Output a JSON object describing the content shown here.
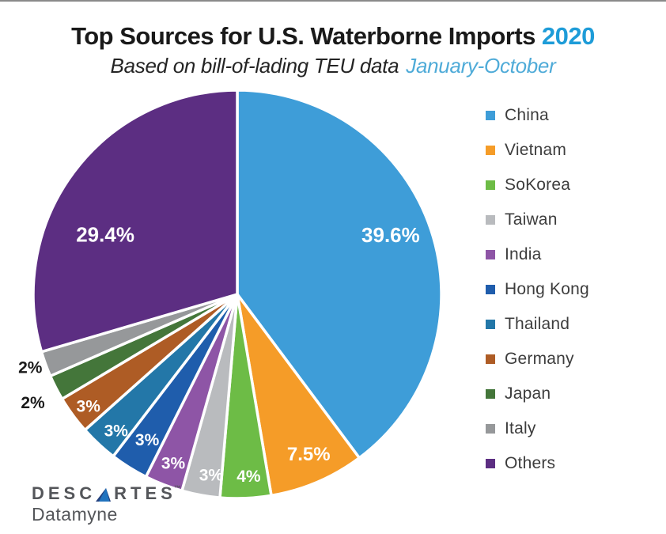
{
  "header": {
    "title": "Top Sources for U.S. Waterborne Imports",
    "title_year": "2020",
    "subtitle": "Based on bill-of-lading TEU data",
    "subtitle_period": "January-October"
  },
  "chart_data": {
    "type": "pie",
    "title": "Top Sources for U.S. Waterborne Imports 2020",
    "subtitle": "Based on bill-of-lading TEU data January-October",
    "unit": "percent share of TEU",
    "direction": "clockwise",
    "start_angle_deg": 0,
    "legend_position": "right",
    "slices": [
      {
        "label": "China",
        "value": 39.6,
        "display": "39.6%",
        "color": "#3E9DD8",
        "label_color": "#FFFFFF",
        "label_outside": false
      },
      {
        "label": "Vietnam",
        "value": 7.5,
        "display": "7.5%",
        "color": "#F59C28",
        "label_color": "#FFFFFF",
        "label_outside": false
      },
      {
        "label": "SoKorea",
        "value": 4,
        "display": "4%",
        "color": "#6DBC46",
        "label_color": "#FFFFFF",
        "label_outside": false
      },
      {
        "label": "Taiwan",
        "value": 3,
        "display": "3%",
        "color": "#B9BBBE",
        "label_color": "#FFFFFF",
        "label_outside": false
      },
      {
        "label": "India",
        "value": 3,
        "display": "3%",
        "color": "#8E55A6",
        "label_color": "#FFFFFF",
        "label_outside": false
      },
      {
        "label": "Hong Kong",
        "value": 3,
        "display": "3%",
        "color": "#1F5DAC",
        "label_color": "#FFFFFF",
        "label_outside": false
      },
      {
        "label": "Thailand",
        "value": 3,
        "display": "3%",
        "color": "#2377A8",
        "label_color": "#FFFFFF",
        "label_outside": false
      },
      {
        "label": "Germany",
        "value": 3,
        "display": "3%",
        "color": "#AE5C25",
        "label_color": "#FFFFFF",
        "label_outside": false
      },
      {
        "label": "Japan",
        "value": 2,
        "display": "2%",
        "color": "#44763A",
        "label_color": "#1A1A1A",
        "label_outside": true
      },
      {
        "label": "Italy",
        "value": 2,
        "display": "2%",
        "color": "#96989A",
        "label_color": "#1A1A1A",
        "label_outside": true
      },
      {
        "label": "Others",
        "value": 29.4,
        "display": "29.4%",
        "color": "#5C2E82",
        "label_color": "#FFFFFF",
        "label_outside": false
      }
    ]
  },
  "logo": {
    "brand": "DESCARTES",
    "brand_prefix": "DESC",
    "brand_suffix": "RTES",
    "trademark": "™",
    "product": "Datamyne"
  }
}
